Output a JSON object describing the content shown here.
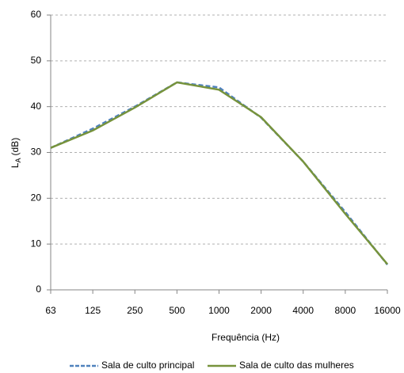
{
  "chart_data": {
    "type": "line",
    "x_label": "Frequência (Hz)",
    "y_label": "L",
    "y_label_subscript": "A",
    "y_label_unit": "(dB)",
    "categories": [
      "63",
      "125",
      "250",
      "500",
      "1000",
      "2000",
      "4000",
      "8000",
      "16000"
    ],
    "series": [
      {
        "name": "Sala de culto principal",
        "color": "#4f81bd",
        "dash": true,
        "values": [
          31,
          35.2,
          40,
          45.3,
          44.2,
          37.6,
          28,
          17,
          5.5
        ]
      },
      {
        "name": "Sala de culto das mulheres",
        "color": "#77933c",
        "dash": false,
        "values": [
          31,
          34.8,
          39.8,
          45.3,
          43.7,
          37.7,
          28,
          16.6,
          5.6
        ]
      }
    ],
    "ylim": [
      0,
      60
    ],
    "yticks": [
      0,
      10,
      20,
      30,
      40,
      50,
      60
    ],
    "grid": true,
    "legend": "bottom"
  }
}
